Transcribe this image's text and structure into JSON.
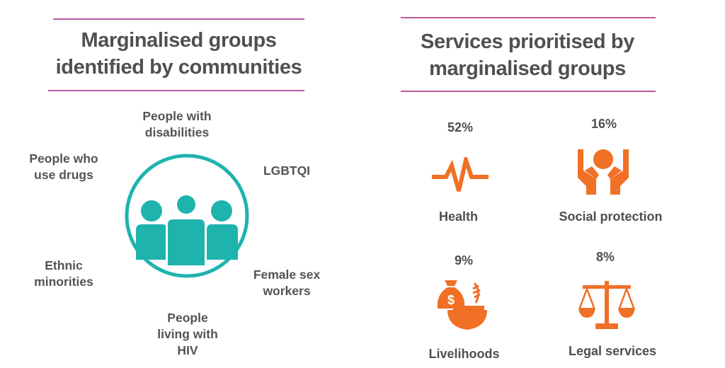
{
  "left": {
    "title": "Marginalised groups\nidentified by communities",
    "icon": "people-group-icon",
    "groups": [
      "People with\ndisabilities",
      "People who\nuse drugs",
      "LGBTQI",
      "Ethnic\nminorities",
      "Female sex\nworkers",
      "People\nliving with\nHIV"
    ]
  },
  "right": {
    "title": "Services prioritised by\nmarginalised groups",
    "services": [
      {
        "percent": "52%",
        "label": "Health",
        "icon": "heartbeat-icon"
      },
      {
        "percent": "16%",
        "label": "Social protection",
        "icon": "protective-hands-icon"
      },
      {
        "percent": "9%",
        "label": "Livelihoods",
        "icon": "money-bag-bowl-icon"
      },
      {
        "percent": "8%",
        "label": "Legal services",
        "icon": "scales-icon"
      }
    ]
  },
  "colors": {
    "rule": "#c0569f",
    "teal": "#1fb3ae",
    "orange": "#f07025",
    "text": "#545454"
  }
}
